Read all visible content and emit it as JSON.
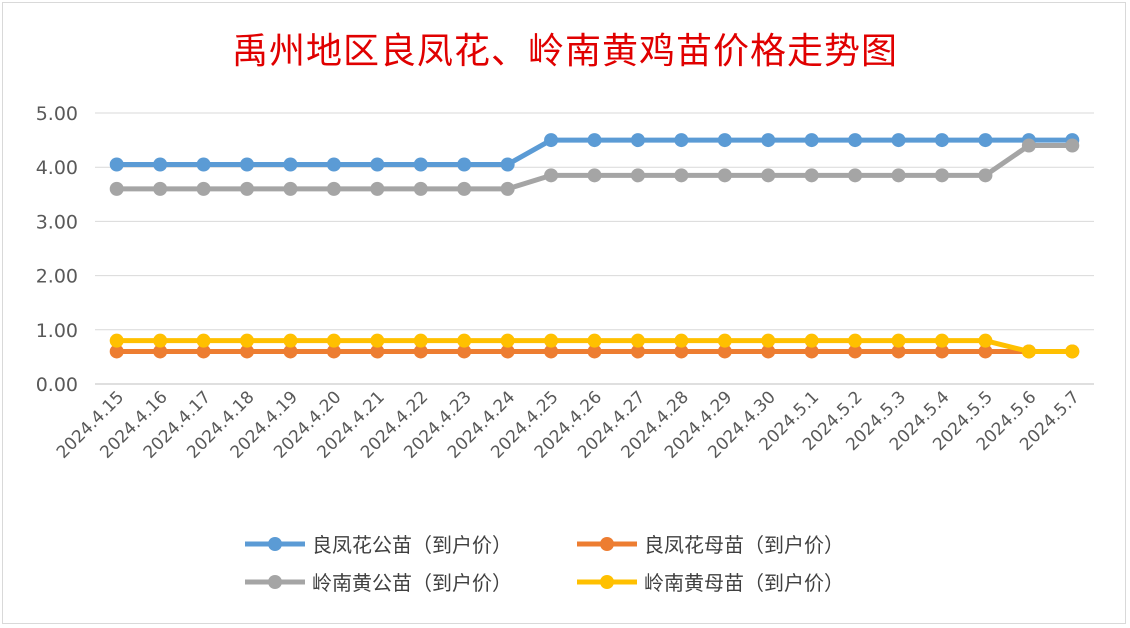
{
  "chart_data": {
    "type": "line",
    "title": "禹州地区良凤花、岭南黄鸡苗价格走势图",
    "categories": [
      "2024.4.15",
      "2024.4.16",
      "2024.4.17",
      "2024.4.18",
      "2024.4.19",
      "2024.4.20",
      "2024.4.21",
      "2024.4.22",
      "2024.4.23",
      "2024.4.24",
      "2024.4.25",
      "2024.4.26",
      "2024.4.27",
      "2024.4.28",
      "2024.4.29",
      "2024.4.30",
      "2024.5.1",
      "2024.5.2",
      "2024.5.3",
      "2024.5.4",
      "2024.5.5",
      "2024.5.6",
      "2024.5.7"
    ],
    "ylim": [
      0,
      5
    ],
    "yticks": [
      "0.00",
      "1.00",
      "2.00",
      "3.00",
      "4.00",
      "5.00"
    ],
    "grid": true,
    "legend_position": "bottom",
    "series": [
      {
        "name": "良凤花公苗（到户价）",
        "color": "#5b9bd5",
        "values": [
          4.05,
          4.05,
          4.05,
          4.05,
          4.05,
          4.05,
          4.05,
          4.05,
          4.05,
          4.05,
          4.5,
          4.5,
          4.5,
          4.5,
          4.5,
          4.5,
          4.5,
          4.5,
          4.5,
          4.5,
          4.5,
          4.5,
          4.5
        ]
      },
      {
        "name": "良凤花母苗（到户价）",
        "color": "#ed7d31",
        "values": [
          0.6,
          0.6,
          0.6,
          0.6,
          0.6,
          0.6,
          0.6,
          0.6,
          0.6,
          0.6,
          0.6,
          0.6,
          0.6,
          0.6,
          0.6,
          0.6,
          0.6,
          0.6,
          0.6,
          0.6,
          0.6,
          0.6,
          0.6
        ]
      },
      {
        "name": "岭南黄公苗（到户价）",
        "color": "#a5a5a5",
        "values": [
          3.6,
          3.6,
          3.6,
          3.6,
          3.6,
          3.6,
          3.6,
          3.6,
          3.6,
          3.6,
          3.85,
          3.85,
          3.85,
          3.85,
          3.85,
          3.85,
          3.85,
          3.85,
          3.85,
          3.85,
          3.85,
          4.4,
          4.4
        ]
      },
      {
        "name": "岭南黄母苗（到户价）",
        "color": "#ffc000",
        "values": [
          0.8,
          0.8,
          0.8,
          0.8,
          0.8,
          0.8,
          0.8,
          0.8,
          0.8,
          0.8,
          0.8,
          0.8,
          0.8,
          0.8,
          0.8,
          0.8,
          0.8,
          0.8,
          0.8,
          0.8,
          0.8,
          0.6,
          0.6
        ]
      }
    ]
  }
}
